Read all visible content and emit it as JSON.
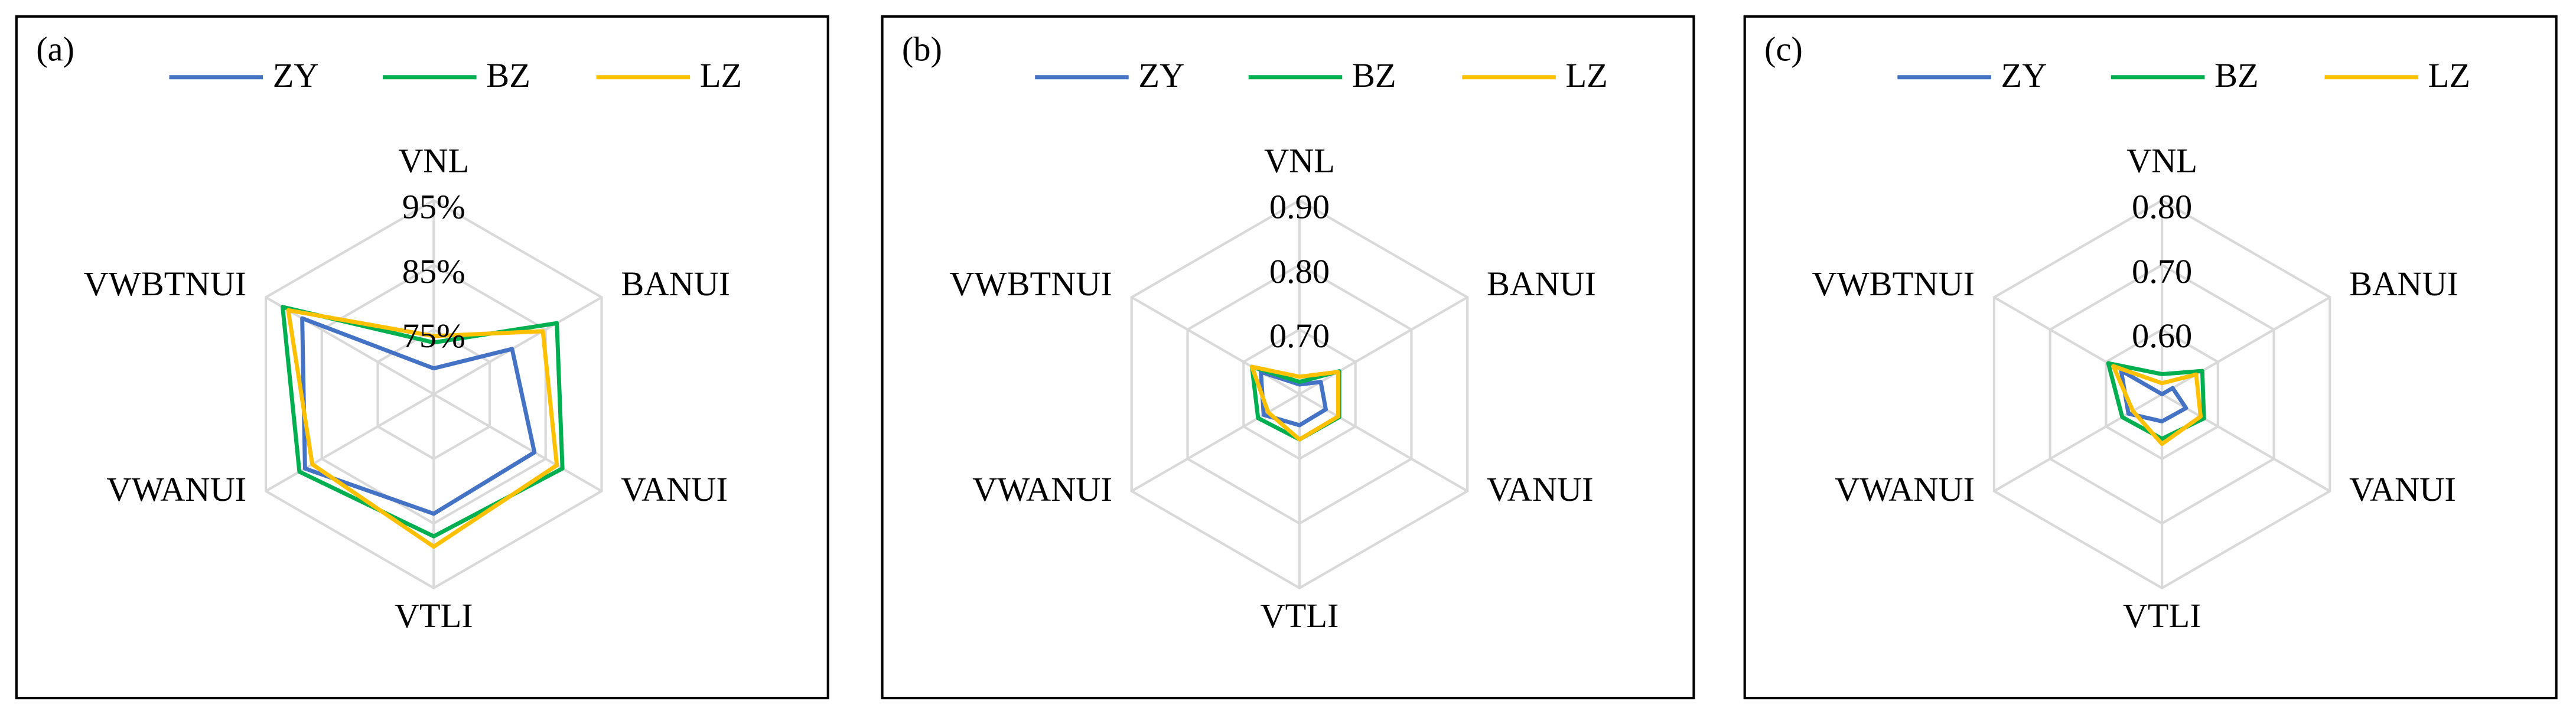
{
  "chart_data": [
    {
      "type": "radar",
      "panel_label": "(a)",
      "categories": [
        "VNL",
        "BANUI",
        "VANUI",
        "VTLI",
        "VWANUI",
        "VWBTNUI"
      ],
      "series": [
        {
          "name": "ZY",
          "color": "#4472c4",
          "values": [
            69,
            79,
            83,
            83.5,
            88,
            88.5
          ]
        },
        {
          "name": "BZ",
          "color": "#00b050",
          "values": [
            73,
            87,
            88,
            87,
            89,
            92
          ]
        },
        {
          "name": "LZ",
          "color": "#ffc000",
          "values": [
            74,
            84.5,
            87,
            88.6,
            86.7,
            91
          ]
        }
      ],
      "rlim": [
        65,
        95
      ],
      "rticks": [
        {
          "value": 75,
          "label": "75%"
        },
        {
          "value": 85,
          "label": "85%"
        },
        {
          "value": 95,
          "label": "95%"
        }
      ]
    },
    {
      "type": "radar",
      "panel_label": "(b)",
      "categories": [
        "VNL",
        "BANUI",
        "VANUI",
        "VTLI",
        "VWANUI",
        "VWBTNUI"
      ],
      "series": [
        {
          "name": "ZY",
          "color": "#4472c4",
          "values": [
            0.615,
            0.638,
            0.647,
            0.648,
            0.664,
            0.669
          ]
        },
        {
          "name": "BZ",
          "color": "#00b050",
          "values": [
            0.619,
            0.671,
            0.671,
            0.67,
            0.674,
            0.685
          ]
        },
        {
          "name": "LZ",
          "color": "#ffc000",
          "values": [
            0.627,
            0.669,
            0.669,
            0.67,
            0.656,
            0.685
          ]
        }
      ],
      "rlim": [
        0.6,
        0.9
      ],
      "rticks": [
        {
          "value": 0.7,
          "label": "0.70"
        },
        {
          "value": 0.8,
          "label": "0.80"
        },
        {
          "value": 0.9,
          "label": "0.90"
        }
      ]
    },
    {
      "type": "radar",
      "panel_label": "(c)",
      "categories": [
        "VNL",
        "BANUI",
        "VANUI",
        "VTLI",
        "VWANUI",
        "VWBTNUI"
      ],
      "series": [
        {
          "name": "ZY",
          "color": "#4472c4",
          "values": [
            0.5,
            0.519,
            0.543,
            0.542,
            0.56,
            0.573
          ]
        },
        {
          "name": "BZ",
          "color": "#00b050",
          "values": [
            0.531,
            0.572,
            0.575,
            0.569,
            0.571,
            0.596
          ]
        },
        {
          "name": "LZ",
          "color": "#ffc000",
          "values": [
            0.517,
            0.561,
            0.569,
            0.577,
            0.552,
            0.587
          ]
        }
      ],
      "rlim": [
        0.5,
        0.8
      ],
      "rticks": [
        {
          "value": 0.6,
          "label": "0.60"
        },
        {
          "value": 0.7,
          "label": "0.70"
        },
        {
          "value": 0.8,
          "label": "0.80"
        }
      ]
    }
  ]
}
